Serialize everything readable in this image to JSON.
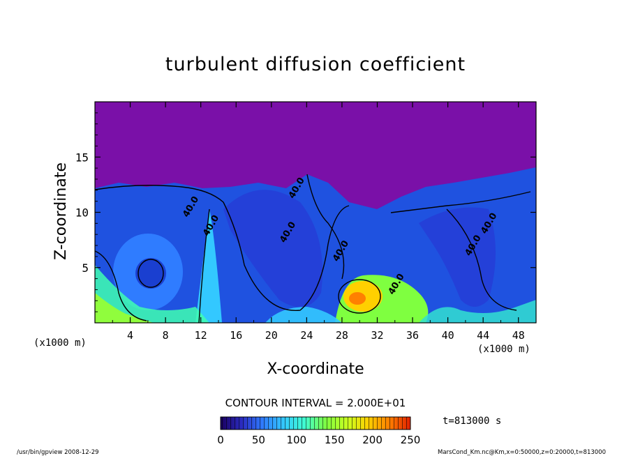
{
  "chart_data": {
    "type": "heatmap",
    "title": "turbulent diffusion coefficient",
    "xlabel": "X-coordinate",
    "ylabel": "Z-coordinate",
    "x_unit_left": "(x1000 m)",
    "x_unit_right": "(x1000 m)",
    "xlim": [
      0,
      50
    ],
    "ylim": [
      0,
      20
    ],
    "x_ticks": [
      4,
      8,
      12,
      16,
      20,
      24,
      28,
      32,
      36,
      40,
      44,
      48
    ],
    "y_ticks": [
      5,
      10,
      15
    ],
    "contour_labels": [
      {
        "text": "40.0",
        "x": 21.5,
        "z": 7.2
      },
      {
        "text": "40.0",
        "x": 22.5,
        "z": 11.2
      },
      {
        "text": "40.0",
        "x": 44.3,
        "z": 8.0
      },
      {
        "text": "40.0",
        "x": 42.5,
        "z": 6.0
      },
      {
        "text": "40.0",
        "x": 12.8,
        "z": 7.8
      },
      {
        "text": "40.0",
        "x": 10.5,
        "z": 9.5
      },
      {
        "text": "40.0",
        "x": 27.5,
        "z": 5.5
      },
      {
        "text": "40.0",
        "x": 33.8,
        "z": 2.5
      }
    ],
    "contour_interval_text": "CONTOUR INTERVAL = 2.000E+01",
    "time_text": "t=813000 s",
    "colorbar": {
      "min": 0,
      "max": 250,
      "tick_labels": [
        "0",
        "50",
        "100",
        "150",
        "200",
        "250"
      ],
      "colors": [
        "#1a0060",
        "#2b2bc0",
        "#2f7cff",
        "#33c8ff",
        "#40ffd0",
        "#7fff40",
        "#c8ff20",
        "#ffd000",
        "#ff8000",
        "#e02000"
      ]
    },
    "footer_left": "/usr/bin/gpview  2008-12-29",
    "footer_right": "MarsCond_Km.nc@Km,x=0:50000,z=0:20000,t=813000"
  }
}
